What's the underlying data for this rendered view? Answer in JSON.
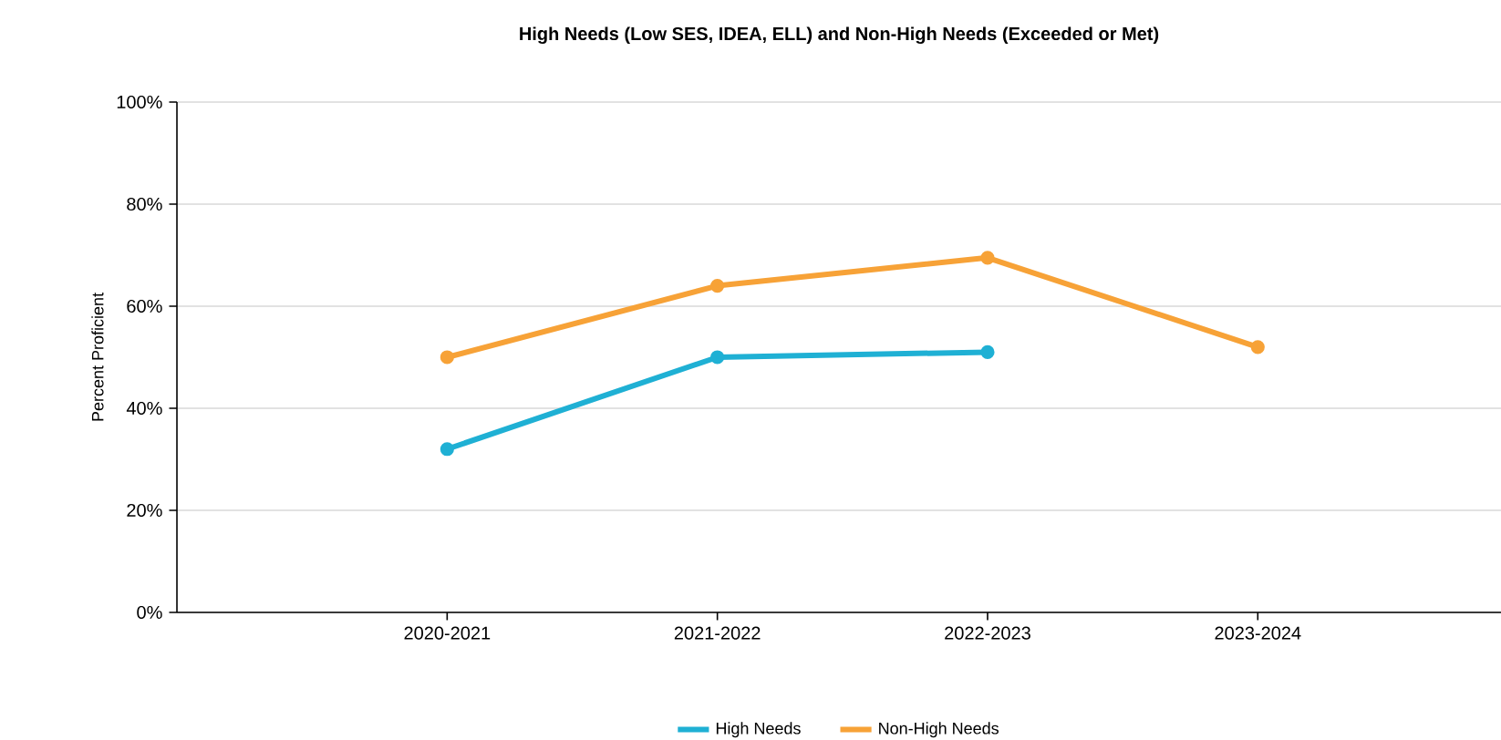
{
  "chart_data": {
    "type": "line",
    "title": "High Needs (Low SES, IDEA, ELL) and Non-High Needs (Exceeded or Met)",
    "ylabel": "Percent Proficient",
    "categories": [
      "2020-2021",
      "2021-2022",
      "2022-2023",
      "2023-2024"
    ],
    "series": [
      {
        "name": "High Needs",
        "color": "#1fb0d4",
        "values": [
          32,
          50,
          51,
          null
        ]
      },
      {
        "name": "Non-High Needs",
        "color": "#f7a237",
        "values": [
          50,
          64,
          69.5,
          52
        ]
      }
    ],
    "ylim": [
      0,
      100
    ],
    "yticks": [
      {
        "value": 0,
        "label": "0%"
      },
      {
        "value": 20,
        "label": "20%"
      },
      {
        "value": 40,
        "label": "40%"
      },
      {
        "value": 60,
        "label": "60%"
      },
      {
        "value": 80,
        "label": "80%"
      },
      {
        "value": 100,
        "label": "100%"
      }
    ],
    "grid": "y",
    "legend": "bottom",
    "marker": "circle",
    "line_style": "solid"
  }
}
